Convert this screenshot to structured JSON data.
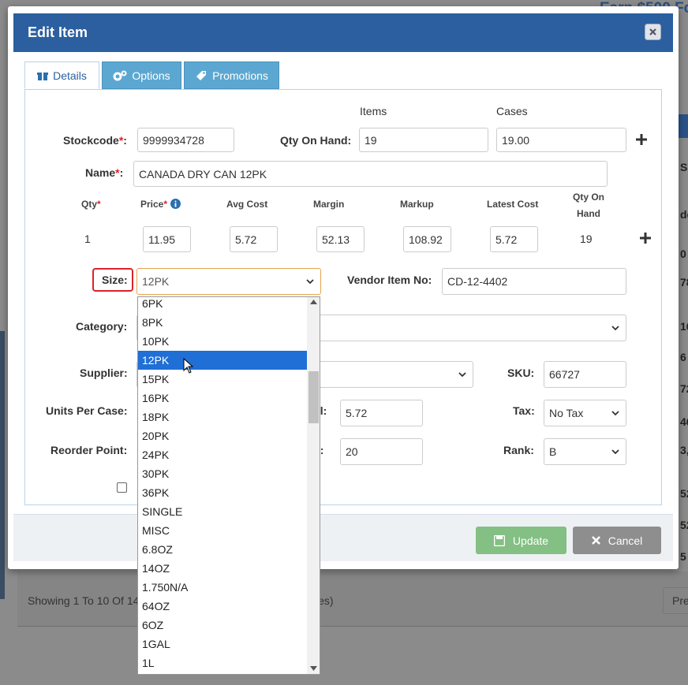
{
  "background": {
    "banner": "Earn $500 Fo",
    "showing": "Showing 1 To 10 Of 14",
    "showing_tail": "ies)",
    "pager": "Pre",
    "right_column": [
      "S",
      "de",
      "0",
      "78",
      "16",
      "6",
      "72",
      "46",
      "3,",
      "52",
      "52",
      "5"
    ]
  },
  "modal": {
    "title": "Edit Item",
    "tabs": [
      "Details",
      "Options",
      "Promotions"
    ],
    "column_headers": {
      "items": "Items",
      "cases": "Cases"
    },
    "stockcode": {
      "label": "Stockcode",
      "required": "*",
      "colon": ":",
      "value": "9999934728"
    },
    "qty_on_hand": {
      "label": "Qty On Hand:",
      "items": "19",
      "cases": "19.00"
    },
    "name": {
      "label": "Name",
      "required": "*",
      "colon": ":",
      "value": "CANADA DRY CAN 12PK"
    },
    "pricing": {
      "headers": [
        {
          "label": "Qty",
          "required": "*"
        },
        {
          "label": "Price",
          "required": "*"
        },
        {
          "label": "Avg Cost"
        },
        {
          "label": "Margin"
        },
        {
          "label": "Markup"
        },
        {
          "label": "Latest Cost"
        },
        {
          "label": "Qty On Hand"
        }
      ],
      "values": [
        "1",
        "11.95",
        "5.72",
        "52.13",
        "108.92",
        "5.72",
        "19"
      ]
    },
    "size": {
      "label": "Size:",
      "value": "12PK",
      "options": [
        "6PK",
        "8PK",
        "10PK",
        "12PK",
        "15PK",
        "16PK",
        "18PK",
        "20PK",
        "24PK",
        "30PK",
        "36PK",
        "SINGLE",
        "MISC",
        "6.8OZ",
        "14OZ",
        "1.750N/A",
        "64OZ",
        "6OZ",
        "1GAL",
        "1L"
      ],
      "selected_index": 3
    },
    "vendor_item_no": {
      "label": "Vendor Item No:",
      "value": "CD-12-4402"
    },
    "category": {
      "label": "Category:"
    },
    "supplier": {
      "label": "Supplier:"
    },
    "sku": {
      "label": "SKU:",
      "value": "66727"
    },
    "units_per_case": {
      "label": "Units Per Case:"
    },
    "hidden_label_1": {
      "label": "al:",
      "value": "5.72"
    },
    "tax": {
      "label": "Tax:",
      "value": "No Tax"
    },
    "reorder_point": {
      "label": "Reorder Point:"
    },
    "hidden_label_2": {
      "label": "e:",
      "value": "20"
    },
    "rank": {
      "label": "Rank:",
      "value": "B"
    },
    "buttons": {
      "update": "Update",
      "cancel": "Cancel"
    }
  }
}
